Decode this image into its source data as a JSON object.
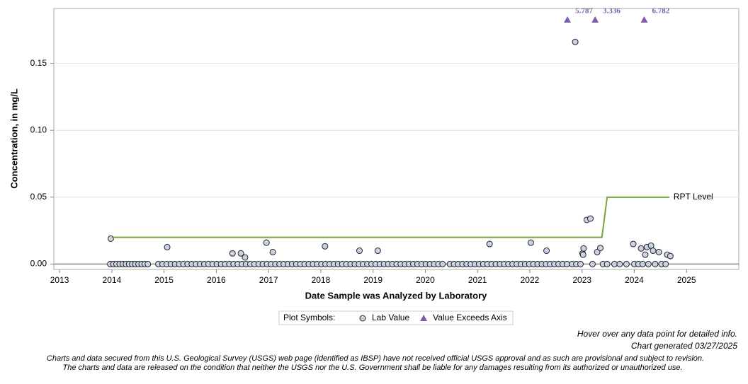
{
  "chart_data": {
    "type": "scatter",
    "y_label": "Concentration, in mg/L",
    "x_label": "Date Sample was Analyzed by Laboratory",
    "xlim": [
      2012.89,
      2026.0
    ],
    "xticks": [
      2013,
      2014,
      2015,
      2016,
      2017,
      2018,
      2019,
      2020,
      2021,
      2022,
      2023,
      2024,
      2025
    ],
    "ylim": [
      -0.004,
      0.191
    ],
    "yticks": [
      {
        "value": 0,
        "label": "0.00"
      },
      {
        "value": 0.05,
        "label": "0.05"
      },
      {
        "value": 0.1,
        "label": "0.10"
      },
      {
        "value": 0.15,
        "label": "0.15"
      }
    ],
    "grid": true,
    "legend_title": "Plot Symbols:",
    "series": [
      {
        "name": "Lab Value",
        "marker": "circle",
        "color": "#c9d3e6",
        "x": [
          2013.97,
          2014.03,
          2014.09,
          2014.15,
          2014.21,
          2014.27,
          2014.33,
          2014.39,
          2014.45,
          2014.51,
          2014.57,
          2014.63,
          2014.69,
          2014.89,
          2014.97,
          2015.05,
          2015.13,
          2015.21,
          2015.29,
          2015.37,
          2015.45,
          2015.53,
          2015.61,
          2015.69,
          2015.77,
          2015.85,
          2015.93,
          2016.01,
          2016.09,
          2016.17,
          2016.25,
          2016.33,
          2016.41,
          2016.49,
          2016.57,
          2016.65,
          2016.73,
          2016.81,
          2016.89,
          2016.97,
          2017.05,
          2017.13,
          2017.21,
          2017.29,
          2017.37,
          2017.45,
          2017.53,
          2017.61,
          2017.69,
          2017.77,
          2017.85,
          2017.93,
          2018.01,
          2018.09,
          2018.17,
          2018.25,
          2018.33,
          2018.41,
          2018.49,
          2018.57,
          2018.65,
          2018.73,
          2018.81,
          2018.89,
          2018.97,
          2019.05,
          2019.13,
          2019.21,
          2019.29,
          2019.37,
          2019.45,
          2019.53,
          2019.61,
          2019.69,
          2019.77,
          2019.85,
          2019.93,
          2020.01,
          2020.09,
          2020.17,
          2020.25,
          2020.33,
          2020.47,
          2020.55,
          2020.63,
          2020.71,
          2020.79,
          2020.87,
          2020.95,
          2021.03,
          2021.11,
          2021.19,
          2021.27,
          2021.35,
          2021.43,
          2021.51,
          2021.59,
          2021.67,
          2021.75,
          2021.83,
          2021.91,
          2021.99,
          2022.07,
          2022.15,
          2022.23,
          2022.31,
          2022.39,
          2022.47,
          2022.55,
          2022.63,
          2022.71,
          2022.81,
          2022.89,
          2022.97,
          2023.2,
          2023.4,
          2023.48,
          2023.62,
          2023.72,
          2023.85,
          2024.0,
          2024.08,
          2024.16,
          2024.27,
          2024.4,
          2024.52,
          2024.6,
          2013.98,
          2015.06,
          2016.31,
          2016.47,
          2016.55,
          2016.96,
          2017.08,
          2018.08,
          2018.74,
          2019.09,
          2021.23,
          2022.02,
          2022.32,
          2022.87,
          2023.01,
          2023.02,
          2023.03,
          2023.09,
          2023.16,
          2023.29,
          2023.35,
          2023.98,
          2024.13,
          2024.21,
          2024.24,
          2024.32,
          2024.36,
          2024.47,
          2024.63,
          2024.69
        ],
        "values": [
          0,
          0,
          0,
          0,
          0,
          0,
          0,
          0,
          0,
          0,
          0,
          0,
          0,
          0,
          0,
          0,
          0,
          0,
          0,
          0,
          0,
          0,
          0,
          0,
          0,
          0,
          0,
          0,
          0,
          0,
          0,
          0,
          0,
          0,
          0,
          0,
          0,
          0,
          0,
          0,
          0,
          0,
          0,
          0,
          0,
          0,
          0,
          0,
          0,
          0,
          0,
          0,
          0,
          0,
          0,
          0,
          0,
          0,
          0,
          0,
          0,
          0,
          0,
          0,
          0,
          0,
          0,
          0,
          0,
          0,
          0,
          0,
          0,
          0,
          0,
          0,
          0,
          0,
          0,
          0,
          0,
          0,
          0,
          0,
          0,
          0,
          0,
          0,
          0,
          0,
          0,
          0,
          0,
          0,
          0,
          0,
          0,
          0,
          0,
          0,
          0,
          0,
          0,
          0,
          0,
          0,
          0,
          0,
          0,
          0,
          0,
          0,
          0,
          0,
          0,
          0,
          0,
          0,
          0,
          0,
          0,
          0,
          0,
          0,
          0,
          0,
          0,
          0.019,
          0.0127,
          0.008,
          0.008,
          0.005,
          0.016,
          0.009,
          0.0133,
          0.01,
          0.01,
          0.015,
          0.016,
          0.01,
          0.166,
          0.008,
          0.007,
          0.0117,
          0.033,
          0.034,
          0.009,
          0.012,
          0.015,
          0.0117,
          0.007,
          0.0127,
          0.0138,
          0.01,
          0.009,
          0.007,
          0.006
        ]
      },
      {
        "name": "RPT Level",
        "marker": "line",
        "color": "#7aa23a",
        "x": [
          2014.0,
          2023.38,
          2023.48,
          2024.67
        ],
        "values": [
          0.02,
          0.02,
          0.05,
          0.05
        ]
      },
      {
        "name": "Value Exceeds Axis",
        "marker": "triangle",
        "color": "#7b5ea7",
        "x": [
          2022.72,
          2023.25,
          2024.19
        ],
        "values": [
          5.787,
          3.336,
          6.782
        ]
      }
    ],
    "notes": [
      "Hover over any data point for detailed info.",
      "Chart generated 03/27/2025"
    ],
    "disclaimer": [
      "Charts and data secured from this U.S. Geological Survey (USGS) web page (identified as IBSP) have not received official USGS approval and as such are provisional and subject to revision.",
      "The charts and data are released on the condition that neither the USGS nor the U.S. Government shall be liable for any damages resulting from its authorized or unauthorized use."
    ]
  }
}
